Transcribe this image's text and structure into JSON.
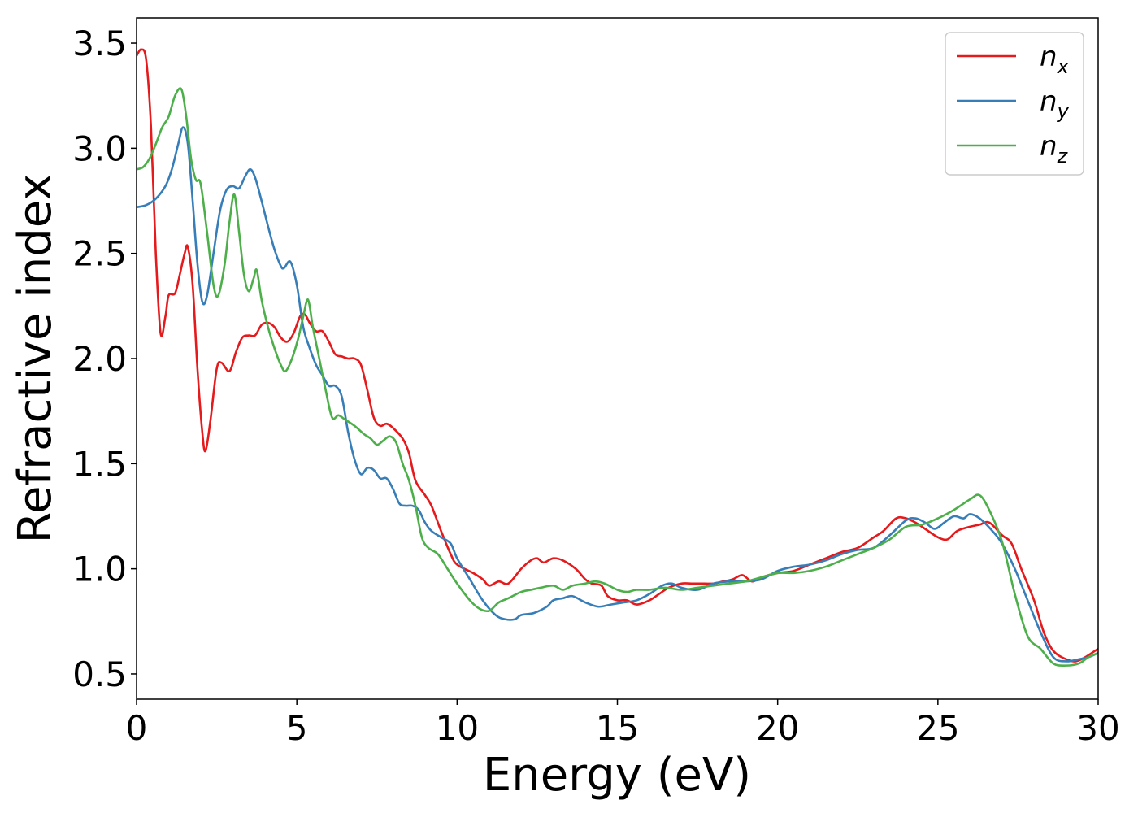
{
  "chart_data": {
    "type": "line",
    "xlabel": "Energy (eV)",
    "ylabel": "Refractive index",
    "xlim": [
      0,
      30
    ],
    "ylim": [
      0.38,
      3.62
    ],
    "xticks": [
      0,
      5,
      10,
      15,
      20,
      25,
      30
    ],
    "yticks": [
      0.5,
      1.0,
      1.5,
      2.0,
      2.5,
      3.0,
      3.5
    ],
    "grid": false,
    "legend_position": "top-right",
    "series": [
      {
        "name": "n",
        "subscript": "x",
        "color": "#e41a1c",
        "points": [
          [
            0,
            3.44
          ],
          [
            0.15,
            3.47
          ],
          [
            0.3,
            3.42
          ],
          [
            0.45,
            3.1
          ],
          [
            0.6,
            2.5
          ],
          [
            0.75,
            2.12
          ],
          [
            0.9,
            2.2
          ],
          [
            1.0,
            2.3
          ],
          [
            1.2,
            2.31
          ],
          [
            1.35,
            2.4
          ],
          [
            1.5,
            2.5
          ],
          [
            1.6,
            2.53
          ],
          [
            1.75,
            2.35
          ],
          [
            1.9,
            1.95
          ],
          [
            2.05,
            1.65
          ],
          [
            2.15,
            1.56
          ],
          [
            2.3,
            1.7
          ],
          [
            2.5,
            1.95
          ],
          [
            2.65,
            1.98
          ],
          [
            2.9,
            1.94
          ],
          [
            3.1,
            2.03
          ],
          [
            3.3,
            2.1
          ],
          [
            3.5,
            2.11
          ],
          [
            3.7,
            2.11
          ],
          [
            3.9,
            2.16
          ],
          [
            4.1,
            2.17
          ],
          [
            4.3,
            2.15
          ],
          [
            4.5,
            2.1
          ],
          [
            4.7,
            2.08
          ],
          [
            4.9,
            2.12
          ],
          [
            5.1,
            2.2
          ],
          [
            5.25,
            2.21
          ],
          [
            5.4,
            2.17
          ],
          [
            5.6,
            2.13
          ],
          [
            5.8,
            2.13
          ],
          [
            6.0,
            2.08
          ],
          [
            6.2,
            2.02
          ],
          [
            6.4,
            2.01
          ],
          [
            6.6,
            2.0
          ],
          [
            6.8,
            2.0
          ],
          [
            7.0,
            1.97
          ],
          [
            7.2,
            1.85
          ],
          [
            7.4,
            1.72
          ],
          [
            7.6,
            1.68
          ],
          [
            7.8,
            1.69
          ],
          [
            8.0,
            1.67
          ],
          [
            8.3,
            1.62
          ],
          [
            8.5,
            1.55
          ],
          [
            8.7,
            1.42
          ],
          [
            9.0,
            1.35
          ],
          [
            9.2,
            1.3
          ],
          [
            9.5,
            1.18
          ],
          [
            9.8,
            1.07
          ],
          [
            10.0,
            1.02
          ],
          [
            10.5,
            0.98
          ],
          [
            10.8,
            0.95
          ],
          [
            11.0,
            0.92
          ],
          [
            11.3,
            0.94
          ],
          [
            11.6,
            0.93
          ],
          [
            12.0,
            1.0
          ],
          [
            12.3,
            1.04
          ],
          [
            12.5,
            1.05
          ],
          [
            12.7,
            1.03
          ],
          [
            13.0,
            1.05
          ],
          [
            13.3,
            1.04
          ],
          [
            13.7,
            1.0
          ],
          [
            14.0,
            0.95
          ],
          [
            14.2,
            0.93
          ],
          [
            14.5,
            0.92
          ],
          [
            14.7,
            0.87
          ],
          [
            15.0,
            0.85
          ],
          [
            15.3,
            0.85
          ],
          [
            15.6,
            0.83
          ],
          [
            16.0,
            0.85
          ],
          [
            16.3,
            0.88
          ],
          [
            16.6,
            0.91
          ],
          [
            17.0,
            0.93
          ],
          [
            17.3,
            0.93
          ],
          [
            17.6,
            0.93
          ],
          [
            18.0,
            0.93
          ],
          [
            18.3,
            0.94
          ],
          [
            18.6,
            0.95
          ],
          [
            18.9,
            0.97
          ],
          [
            19.2,
            0.94
          ],
          [
            19.5,
            0.96
          ],
          [
            20.0,
            0.98
          ],
          [
            20.5,
            0.99
          ],
          [
            21.0,
            1.02
          ],
          [
            21.5,
            1.05
          ],
          [
            22.0,
            1.08
          ],
          [
            22.5,
            1.1
          ],
          [
            23.0,
            1.15
          ],
          [
            23.3,
            1.18
          ],
          [
            23.7,
            1.24
          ],
          [
            24.0,
            1.24
          ],
          [
            24.3,
            1.22
          ],
          [
            24.6,
            1.19
          ],
          [
            25.0,
            1.15
          ],
          [
            25.3,
            1.14
          ],
          [
            25.6,
            1.18
          ],
          [
            26.0,
            1.2
          ],
          [
            26.3,
            1.21
          ],
          [
            26.6,
            1.22
          ],
          [
            27.0,
            1.16
          ],
          [
            27.3,
            1.12
          ],
          [
            27.6,
            1.0
          ],
          [
            28.0,
            0.85
          ],
          [
            28.3,
            0.7
          ],
          [
            28.6,
            0.61
          ],
          [
            29.0,
            0.57
          ],
          [
            29.3,
            0.56
          ],
          [
            29.6,
            0.58
          ],
          [
            30.0,
            0.62
          ]
        ]
      },
      {
        "name": "n",
        "subscript": "y",
        "color": "#377eb8",
        "points": [
          [
            0,
            2.72
          ],
          [
            0.3,
            2.73
          ],
          [
            0.6,
            2.76
          ],
          [
            0.9,
            2.82
          ],
          [
            1.1,
            2.9
          ],
          [
            1.3,
            3.02
          ],
          [
            1.45,
            3.1
          ],
          [
            1.6,
            3.02
          ],
          [
            1.75,
            2.75
          ],
          [
            1.9,
            2.45
          ],
          [
            2.05,
            2.27
          ],
          [
            2.2,
            2.3
          ],
          [
            2.4,
            2.5
          ],
          [
            2.6,
            2.7
          ],
          [
            2.8,
            2.8
          ],
          [
            3.0,
            2.82
          ],
          [
            3.2,
            2.81
          ],
          [
            3.4,
            2.87
          ],
          [
            3.55,
            2.9
          ],
          [
            3.7,
            2.86
          ],
          [
            3.9,
            2.75
          ],
          [
            4.1,
            2.63
          ],
          [
            4.3,
            2.52
          ],
          [
            4.5,
            2.44
          ],
          [
            4.6,
            2.43
          ],
          [
            4.8,
            2.46
          ],
          [
            5.0,
            2.35
          ],
          [
            5.2,
            2.15
          ],
          [
            5.4,
            2.05
          ],
          [
            5.6,
            1.97
          ],
          [
            5.8,
            1.92
          ],
          [
            6.0,
            1.87
          ],
          [
            6.2,
            1.87
          ],
          [
            6.4,
            1.82
          ],
          [
            6.6,
            1.65
          ],
          [
            6.8,
            1.52
          ],
          [
            7.0,
            1.45
          ],
          [
            7.2,
            1.48
          ],
          [
            7.4,
            1.47
          ],
          [
            7.6,
            1.43
          ],
          [
            7.8,
            1.43
          ],
          [
            8.0,
            1.38
          ],
          [
            8.2,
            1.31
          ],
          [
            8.4,
            1.3
          ],
          [
            8.6,
            1.3
          ],
          [
            8.8,
            1.28
          ],
          [
            9.0,
            1.22
          ],
          [
            9.2,
            1.18
          ],
          [
            9.5,
            1.15
          ],
          [
            9.8,
            1.12
          ],
          [
            10.0,
            1.05
          ],
          [
            10.4,
            0.95
          ],
          [
            10.8,
            0.85
          ],
          [
            11.2,
            0.78
          ],
          [
            11.5,
            0.76
          ],
          [
            11.8,
            0.76
          ],
          [
            12.0,
            0.78
          ],
          [
            12.4,
            0.79
          ],
          [
            12.8,
            0.82
          ],
          [
            13.0,
            0.85
          ],
          [
            13.3,
            0.86
          ],
          [
            13.6,
            0.87
          ],
          [
            14.0,
            0.84
          ],
          [
            14.4,
            0.82
          ],
          [
            14.8,
            0.83
          ],
          [
            15.2,
            0.84
          ],
          [
            15.6,
            0.85
          ],
          [
            16.0,
            0.88
          ],
          [
            16.4,
            0.92
          ],
          [
            16.7,
            0.93
          ],
          [
            17.0,
            0.91
          ],
          [
            17.5,
            0.9
          ],
          [
            18.0,
            0.93
          ],
          [
            18.5,
            0.94
          ],
          [
            19.0,
            0.94
          ],
          [
            19.5,
            0.95
          ],
          [
            20.0,
            0.99
          ],
          [
            20.5,
            1.01
          ],
          [
            21.0,
            1.02
          ],
          [
            21.5,
            1.04
          ],
          [
            22.0,
            1.07
          ],
          [
            22.5,
            1.09
          ],
          [
            23.0,
            1.1
          ],
          [
            23.5,
            1.16
          ],
          [
            24.0,
            1.23
          ],
          [
            24.3,
            1.24
          ],
          [
            24.6,
            1.22
          ],
          [
            24.9,
            1.19
          ],
          [
            25.2,
            1.22
          ],
          [
            25.5,
            1.25
          ],
          [
            25.8,
            1.24
          ],
          [
            26.0,
            1.26
          ],
          [
            26.3,
            1.24
          ],
          [
            26.7,
            1.18
          ],
          [
            27.0,
            1.12
          ],
          [
            27.4,
            1.0
          ],
          [
            27.8,
            0.85
          ],
          [
            28.2,
            0.7
          ],
          [
            28.6,
            0.58
          ],
          [
            29.0,
            0.56
          ],
          [
            29.4,
            0.57
          ],
          [
            29.7,
            0.58
          ],
          [
            30.0,
            0.6
          ]
        ]
      },
      {
        "name": "n",
        "subscript": "z",
        "color": "#4daf4a",
        "points": [
          [
            0,
            2.9
          ],
          [
            0.2,
            2.91
          ],
          [
            0.4,
            2.95
          ],
          [
            0.6,
            3.02
          ],
          [
            0.8,
            3.1
          ],
          [
            1.0,
            3.15
          ],
          [
            1.2,
            3.25
          ],
          [
            1.4,
            3.28
          ],
          [
            1.55,
            3.15
          ],
          [
            1.7,
            2.95
          ],
          [
            1.85,
            2.85
          ],
          [
            2.0,
            2.83
          ],
          [
            2.2,
            2.6
          ],
          [
            2.4,
            2.35
          ],
          [
            2.55,
            2.3
          ],
          [
            2.75,
            2.45
          ],
          [
            2.9,
            2.65
          ],
          [
            3.05,
            2.78
          ],
          [
            3.2,
            2.6
          ],
          [
            3.35,
            2.4
          ],
          [
            3.5,
            2.32
          ],
          [
            3.65,
            2.38
          ],
          [
            3.75,
            2.42
          ],
          [
            3.9,
            2.28
          ],
          [
            4.1,
            2.15
          ],
          [
            4.3,
            2.05
          ],
          [
            4.5,
            1.97
          ],
          [
            4.65,
            1.94
          ],
          [
            4.85,
            2.0
          ],
          [
            5.05,
            2.1
          ],
          [
            5.2,
            2.2
          ],
          [
            5.35,
            2.28
          ],
          [
            5.5,
            2.15
          ],
          [
            5.7,
            2.0
          ],
          [
            5.9,
            1.85
          ],
          [
            6.1,
            1.72
          ],
          [
            6.3,
            1.73
          ],
          [
            6.5,
            1.71
          ],
          [
            6.8,
            1.68
          ],
          [
            7.1,
            1.64
          ],
          [
            7.3,
            1.62
          ],
          [
            7.5,
            1.59
          ],
          [
            7.7,
            1.61
          ],
          [
            7.9,
            1.63
          ],
          [
            8.1,
            1.6
          ],
          [
            8.3,
            1.5
          ],
          [
            8.5,
            1.42
          ],
          [
            8.7,
            1.3
          ],
          [
            8.9,
            1.15
          ],
          [
            9.1,
            1.1
          ],
          [
            9.4,
            1.07
          ],
          [
            9.7,
            1.0
          ],
          [
            10.0,
            0.93
          ],
          [
            10.4,
            0.85
          ],
          [
            10.7,
            0.81
          ],
          [
            11.0,
            0.8
          ],
          [
            11.3,
            0.84
          ],
          [
            11.6,
            0.86
          ],
          [
            12.0,
            0.89
          ],
          [
            12.3,
            0.9
          ],
          [
            12.6,
            0.91
          ],
          [
            13.0,
            0.92
          ],
          [
            13.3,
            0.9
          ],
          [
            13.6,
            0.92
          ],
          [
            14.0,
            0.93
          ],
          [
            14.3,
            0.94
          ],
          [
            14.6,
            0.93
          ],
          [
            15.0,
            0.9
          ],
          [
            15.3,
            0.89
          ],
          [
            15.6,
            0.9
          ],
          [
            16.0,
            0.9
          ],
          [
            16.5,
            0.91
          ],
          [
            17.0,
            0.9
          ],
          [
            17.5,
            0.91
          ],
          [
            18.0,
            0.92
          ],
          [
            18.5,
            0.93
          ],
          [
            19.0,
            0.94
          ],
          [
            19.5,
            0.96
          ],
          [
            20.0,
            0.98
          ],
          [
            20.5,
            0.98
          ],
          [
            21.0,
            0.99
          ],
          [
            21.5,
            1.01
          ],
          [
            22.0,
            1.04
          ],
          [
            22.5,
            1.07
          ],
          [
            23.0,
            1.1
          ],
          [
            23.5,
            1.14
          ],
          [
            24.0,
            1.2
          ],
          [
            24.5,
            1.21
          ],
          [
            25.0,
            1.24
          ],
          [
            25.5,
            1.28
          ],
          [
            26.0,
            1.33
          ],
          [
            26.3,
            1.35
          ],
          [
            26.6,
            1.28
          ],
          [
            27.0,
            1.13
          ],
          [
            27.4,
            0.88
          ],
          [
            27.8,
            0.68
          ],
          [
            28.2,
            0.62
          ],
          [
            28.6,
            0.55
          ],
          [
            29.0,
            0.54
          ],
          [
            29.4,
            0.55
          ],
          [
            29.7,
            0.58
          ],
          [
            30.0,
            0.6
          ]
        ]
      }
    ]
  }
}
